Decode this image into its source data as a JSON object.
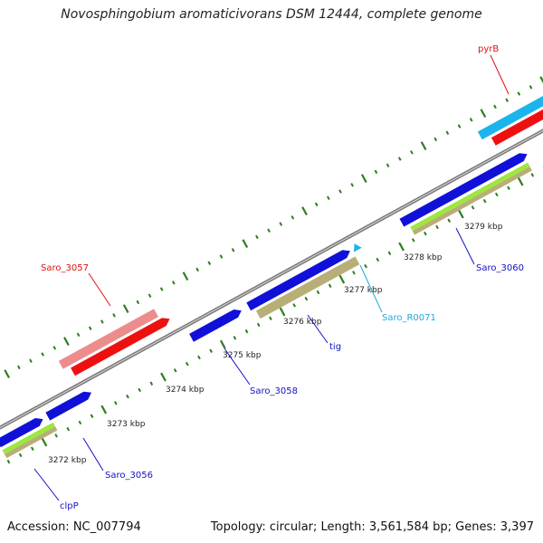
{
  "title": "Novosphingobium aromaticivorans DSM 12444, complete genome",
  "footer": {
    "accession": "Accession: NC_007794",
    "summary": "Topology: circular; Length: 3,561,584 bp; Genes: 3,397"
  },
  "colors": {
    "backbone": "#808080",
    "tick": "#2e7d1e",
    "gene_blue": "#1010d8",
    "gene_red": "#ee1010",
    "gene_pink": "#ec8c8c",
    "gene_cyan": "#1cb4ec",
    "gene_lime": "#9ce83c",
    "gene_khaki": "#b8ae78",
    "label_blue": "#1010c8",
    "label_red": "#e01010",
    "label_cyan": "#20a8e0"
  },
  "ticks": [
    {
      "label": "3272 kbp"
    },
    {
      "label": "3273 kbp"
    },
    {
      "label": "3274 kbp"
    },
    {
      "label": "3275 kbp"
    },
    {
      "label": "3276 kbp"
    },
    {
      "label": "3277 kbp"
    },
    {
      "label": "3278 kbp"
    },
    {
      "label": "3279 kbp"
    }
  ],
  "genes": [
    {
      "label": "pyrB",
      "color": "red"
    },
    {
      "label": "Saro_3057",
      "color": "red"
    },
    {
      "label": "Saro_3060",
      "color": "blue"
    },
    {
      "label": "Saro_R0071",
      "color": "cyan"
    },
    {
      "label": "tig",
      "color": "blue"
    },
    {
      "label": "Saro_3058",
      "color": "blue"
    },
    {
      "label": "Saro_3056",
      "color": "blue"
    },
    {
      "label": "clpP",
      "color": "blue"
    }
  ]
}
